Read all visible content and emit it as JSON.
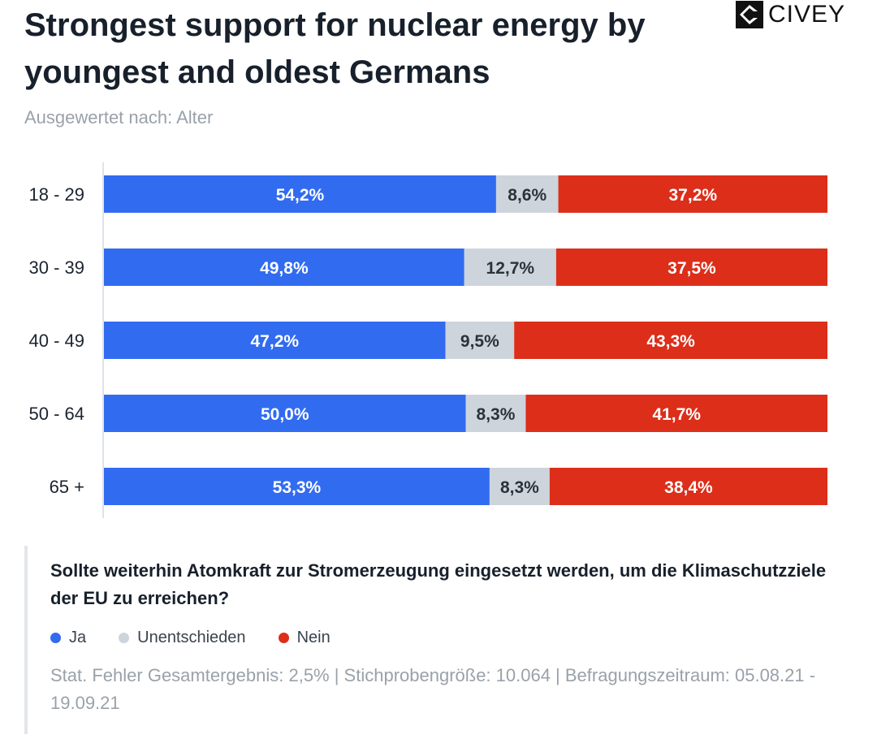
{
  "title": "Strongest support for nuclear energy by youngest and oldest Germans",
  "subtitle": "Ausgewertet nach: Alter",
  "brand": {
    "name": "CIVEY",
    "logo_icon": "civey-logo-icon"
  },
  "colors": {
    "ja": "#316bf0",
    "unentschieden": "#cdd4dc",
    "nein": "#dc2e19",
    "axis": "#dfe3e8"
  },
  "question": "Sollte weiterhin Atomkraft zur Stromerzeugung eingesetzt werden, um die Klimaschutzziele der EU zu erreichen?",
  "legend": [
    {
      "label": "Ja",
      "color": "#316bf0"
    },
    {
      "label": "Unentschieden",
      "color": "#cdd4dc"
    },
    {
      "label": "Nein",
      "color": "#dc2e19"
    }
  ],
  "footnote": "Stat. Fehler Gesamtergebnis: 2,5% | Stichprobengröße: 10.064 | Befragungszeitraum: 05.08.21 - 19.09.21",
  "chart_data": {
    "type": "bar",
    "orientation": "horizontal",
    "stacked": true,
    "title": "Strongest support for nuclear energy by youngest and oldest Germans",
    "subtitle": "Ausgewertet nach: Alter",
    "categories": [
      "18 - 29",
      "30 - 39",
      "40 - 49",
      "50 - 64",
      "65 +"
    ],
    "series": [
      {
        "name": "Ja",
        "color": "#316bf0",
        "values": [
          54.2,
          49.8,
          47.2,
          50.0,
          53.3
        ],
        "labels": [
          "54,2%",
          "49,8%",
          "47,2%",
          "50,0%",
          "53,3%"
        ]
      },
      {
        "name": "Unentschieden",
        "color": "#cdd4dc",
        "values": [
          8.6,
          12.7,
          9.5,
          8.3,
          8.3
        ],
        "labels": [
          "8,6%",
          "12,7%",
          "9,5%",
          "8,3%",
          "8,3%"
        ]
      },
      {
        "name": "Nein",
        "color": "#dc2e19",
        "values": [
          37.2,
          37.5,
          43.3,
          41.7,
          38.4
        ],
        "labels": [
          "37,2%",
          "37,5%",
          "43,3%",
          "41,7%",
          "38,4%"
        ]
      }
    ],
    "xlim": [
      0,
      100
    ],
    "legend_position": "bottom",
    "grid": false
  }
}
